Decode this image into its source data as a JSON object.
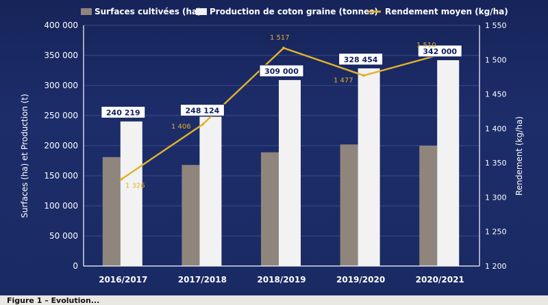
{
  "caption": "Figure 1 – Evolution...",
  "chart_data": {
    "type": "bar",
    "categories": [
      "2016/2017",
      "2017/2018",
      "2018/2019",
      "2019/2020",
      "2020/2021"
    ],
    "series": [
      {
        "name": "Surfaces cultivées (ha)",
        "kind": "bar",
        "axis": "left",
        "values": [
          181000,
          168000,
          189000,
          202000,
          200000
        ],
        "color": "#8f857d"
      },
      {
        "name": "Production de coton graine (tonnes)",
        "kind": "bar",
        "axis": "left",
        "values": [
          240219,
          248124,
          309000,
          328454,
          342000
        ],
        "color": "#f2f2f2"
      },
      {
        "name": "Rendement moyen (kg/ha)",
        "kind": "line",
        "axis": "right",
        "values": [
          1326,
          1406,
          1517,
          1477,
          1510
        ],
        "color": "#e0b22c"
      }
    ],
    "data_labels_production": [
      "240 219",
      "248 124",
      "309 000",
      "328 454",
      "342 000"
    ],
    "data_labels_rendement": [
      "1 326",
      "1 406",
      "1 517",
      "1 477",
      "1 510"
    ],
    "ylabel": "Surfaces (ha) et Production (t)",
    "y2label": "Rendement (kg/ha)",
    "ylim": [
      0,
      400000
    ],
    "y2lim": [
      1200,
      1550
    ],
    "yticks": [
      "0",
      "50 000",
      "100 000",
      "150 000",
      "200 000",
      "250 000",
      "300 000",
      "350 000",
      "400 000"
    ],
    "y2ticks": [
      "1 200",
      "1 250",
      "1 300",
      "1 350",
      "1 400",
      "1 450",
      "1 500",
      "1 550"
    ],
    "legend": "top",
    "grid": true
  }
}
